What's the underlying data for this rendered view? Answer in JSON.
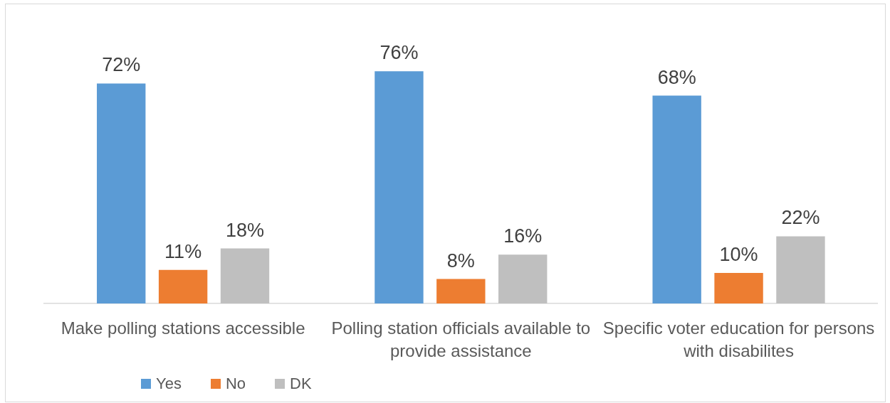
{
  "chart_data": {
    "type": "bar",
    "categories": [
      "Make polling stations accessible",
      "Polling station officials available to provide assistance",
      "Specific voter education for persons with disabilites"
    ],
    "series": [
      {
        "name": "Yes",
        "color": "#5b9bd5",
        "values": [
          72,
          76,
          68
        ],
        "value_labels": [
          "72%",
          "76%",
          "68%"
        ]
      },
      {
        "name": "No",
        "color": "#ed7d31",
        "values": [
          11,
          8,
          10
        ],
        "value_labels": [
          "11%",
          "8%",
          "10%"
        ]
      },
      {
        "name": "DK",
        "color": "#bfbfbf",
        "values": [
          18,
          16,
          22
        ],
        "value_labels": [
          "18%",
          "16%",
          "22%"
        ]
      }
    ],
    "legend": "bottom left"
  }
}
